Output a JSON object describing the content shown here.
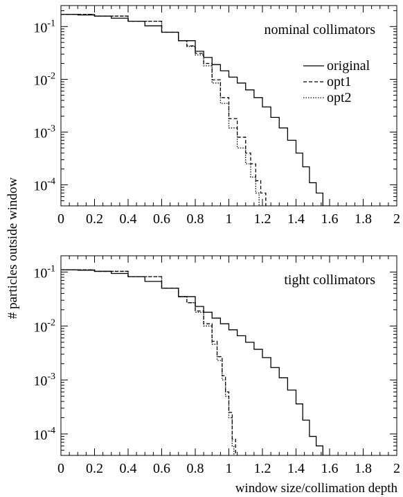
{
  "shared": {
    "ylabel": "# particles outside window",
    "xlabel": "window size/collimation depth"
  },
  "chart_data": [
    {
      "type": "line",
      "subtype": "step",
      "title": "nominal collimators",
      "xlim": [
        0,
        2
      ],
      "ylim": [
        4e-05,
        0.25
      ],
      "yscale": "log",
      "x_ticks": [
        "0",
        "0.2",
        "0.4",
        "0.6",
        "0.8",
        "1",
        "1.2",
        "1.4",
        "1.6",
        "1.8",
        "2"
      ],
      "y_ticks": [
        {
          "base": "10",
          "exp": "-1",
          "value": 0.1
        },
        {
          "base": "10",
          "exp": "-2",
          "value": 0.01
        },
        {
          "base": "10",
          "exp": "-3",
          "value": 0.001
        },
        {
          "base": "10",
          "exp": "-4",
          "value": 0.0001
        }
      ],
      "legend": {
        "position": "top-right"
      },
      "series": [
        {
          "name": "original",
          "style": "solid",
          "x": [
            0,
            0.1,
            0.2,
            0.3,
            0.4,
            0.5,
            0.6,
            0.7,
            0.8,
            0.85,
            0.9,
            0.95,
            1.0,
            1.05,
            1.1,
            1.15,
            1.2,
            1.25,
            1.3,
            1.35,
            1.4,
            1.44,
            1.48,
            1.52,
            1.56,
            1.6
          ],
          "y": [
            0.17,
            0.166,
            0.158,
            0.144,
            0.126,
            0.103,
            0.078,
            0.054,
            0.034,
            0.026,
            0.019,
            0.0145,
            0.011,
            0.0085,
            0.0063,
            0.0045,
            0.003,
            0.0019,
            0.0012,
            0.0007,
            0.0004,
            0.00022,
            0.00011,
            7e-05,
            4e-05,
            4e-05
          ]
        },
        {
          "name": "opt1",
          "style": "dashed",
          "x": [
            0,
            0.2,
            0.4,
            0.6,
            0.7,
            0.75,
            0.8,
            0.85,
            0.9,
            0.95,
            1.0,
            1.05,
            1.1,
            1.13,
            1.16,
            1.19,
            1.22,
            1.23
          ],
          "y": [
            0.17,
            0.158,
            0.126,
            0.078,
            0.054,
            0.043,
            0.031,
            0.02,
            0.0098,
            0.0045,
            0.0018,
            0.0008,
            0.0004,
            0.00025,
            0.00012,
            7e-05,
            4e-05,
            4e-05
          ]
        },
        {
          "name": "opt2",
          "style": "dotted",
          "x": [
            0,
            0.2,
            0.4,
            0.6,
            0.7,
            0.75,
            0.8,
            0.85,
            0.9,
            0.95,
            1.0,
            1.05,
            1.1,
            1.13,
            1.16,
            1.18,
            1.2
          ],
          "y": [
            0.17,
            0.158,
            0.126,
            0.078,
            0.054,
            0.042,
            0.029,
            0.018,
            0.0085,
            0.0035,
            0.0012,
            0.0005,
            0.00025,
            0.00014,
            7e-05,
            4e-05,
            4e-05
          ]
        }
      ]
    },
    {
      "type": "line",
      "subtype": "step",
      "title": "tight collimators",
      "xlim": [
        0,
        2
      ],
      "ylim": [
        4e-05,
        0.2
      ],
      "yscale": "log",
      "x_ticks": [
        "0",
        "0.2",
        "0.4",
        "0.6",
        "0.8",
        "1",
        "1.2",
        "1.4",
        "1.6",
        "1.8",
        "2"
      ],
      "y_ticks": [
        {
          "base": "10",
          "exp": "-1",
          "value": 0.1
        },
        {
          "base": "10",
          "exp": "-2",
          "value": 0.01
        },
        {
          "base": "10",
          "exp": "-3",
          "value": 0.001
        },
        {
          "base": "10",
          "exp": "-4",
          "value": 0.0001
        }
      ],
      "series": [
        {
          "name": "original",
          "style": "solid",
          "x": [
            0,
            0.1,
            0.2,
            0.3,
            0.4,
            0.5,
            0.6,
            0.7,
            0.8,
            0.85,
            0.9,
            0.95,
            1.0,
            1.05,
            1.1,
            1.15,
            1.2,
            1.25,
            1.3,
            1.35,
            1.4,
            1.44,
            1.48,
            1.52,
            1.56,
            1.6
          ],
          "y": [
            0.11,
            0.108,
            0.103,
            0.094,
            0.082,
            0.067,
            0.05,
            0.035,
            0.023,
            0.018,
            0.014,
            0.011,
            0.0085,
            0.0066,
            0.005,
            0.0037,
            0.0026,
            0.0017,
            0.0011,
            0.00065,
            0.00036,
            0.00018,
            9e-05,
            6e-05,
            4e-05,
            4e-05
          ]
        },
        {
          "name": "opt1",
          "style": "dashed",
          "x": [
            0,
            0.2,
            0.4,
            0.6,
            0.7,
            0.75,
            0.8,
            0.85,
            0.9,
            0.93,
            0.96,
            0.98,
            1.0,
            1.02,
            1.04
          ],
          "y": [
            0.11,
            0.103,
            0.082,
            0.05,
            0.035,
            0.027,
            0.019,
            0.011,
            0.0052,
            0.0027,
            0.0012,
            0.0006,
            0.00025,
            8e-05,
            4e-05
          ]
        },
        {
          "name": "opt2",
          "style": "dotted",
          "x": [
            0,
            0.2,
            0.4,
            0.6,
            0.7,
            0.75,
            0.8,
            0.85,
            0.9,
            0.93,
            0.96,
            0.98,
            1.0,
            1.02,
            1.03
          ],
          "y": [
            0.11,
            0.103,
            0.082,
            0.05,
            0.035,
            0.027,
            0.018,
            0.01,
            0.0046,
            0.0023,
            0.001,
            0.0005,
            0.0002,
            6e-05,
            4e-05
          ]
        }
      ]
    }
  ]
}
